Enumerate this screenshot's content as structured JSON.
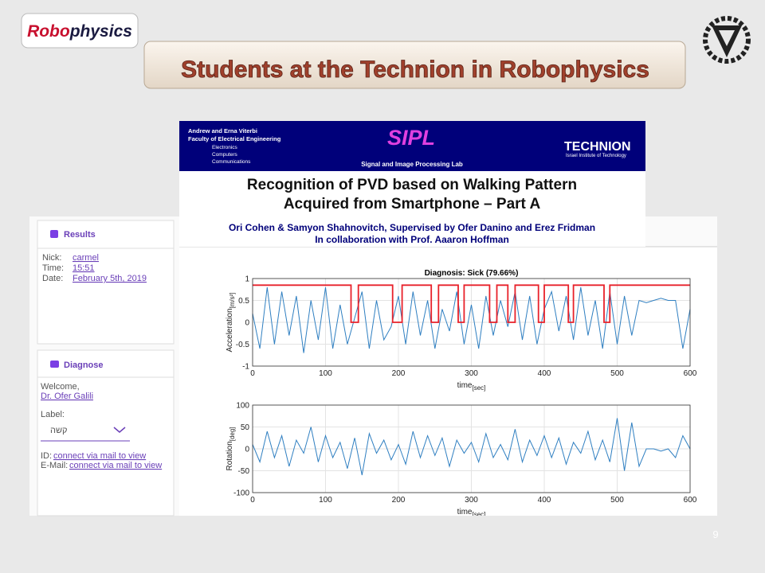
{
  "slide": {
    "logo_red": "Robo",
    "logo_dark": "physics",
    "title": "Students at the Technion in Robophysics",
    "page_number": "9"
  },
  "poster": {
    "faculty_1": "Andrew and Erna Viterbi",
    "faculty_2": "Faculty of Electrical Engineering",
    "dept_1": "Electronics",
    "dept_2": "Computers",
    "dept_3": "Communications",
    "lab_short": "SIPL",
    "lab_name": "Signal and Image Processing Lab",
    "uni": "TECHNION",
    "uni_sub": "Israel Institute of Technology",
    "title_1": "Recognition of PVD based on Walking Pattern",
    "title_2": "Acquired from Smartphone – Part A",
    "authors": "Ori Cohen & Samyon Shahnovitch, Supervised by Ofer Danino and Erez Fridman",
    "collab": "In collaboration with Prof. Aaaron Hoffman"
  },
  "sidebar": {
    "results": {
      "heading": "Results",
      "rows": [
        [
          "Nick:",
          "carmel"
        ],
        [
          "Time:",
          "15:51"
        ],
        [
          "Date:",
          "February 5th, 2019"
        ]
      ]
    },
    "diagnose": {
      "heading": "Diagnose",
      "welcome": "Welcome,",
      "doctor": "Dr. Ofer Galili",
      "label": "Label:",
      "label_value": "קשה",
      "id_label": "ID:",
      "id_value": "connect via mail to view",
      "email_label": "E-Mail:",
      "email_value": "connect via mail to view"
    }
  },
  "chart_data": [
    {
      "type": "line",
      "title": "Diagnosis: Sick (79.66%)",
      "ylabel": "Acceleration",
      "ylabel_unit": "[m/s²]",
      "xlabel": "time",
      "xlabel_unit": "[sec]",
      "xlim": [
        0,
        600
      ],
      "ylim": [
        -1,
        1
      ],
      "xticks": [
        0,
        100,
        200,
        300,
        400,
        500,
        600
      ],
      "yticks": [
        -1,
        -0.5,
        0,
        0.5,
        1
      ],
      "grid": true,
      "series": [
        {
          "color": "#2f7fc1",
          "x": [
            0,
            10,
            20,
            30,
            40,
            50,
            60,
            70,
            80,
            90,
            100,
            110,
            120,
            130,
            140,
            150,
            160,
            170,
            180,
            190,
            200,
            210,
            220,
            230,
            240,
            250,
            260,
            270,
            280,
            290,
            300,
            310,
            320,
            330,
            340,
            350,
            360,
            370,
            380,
            390,
            400,
            410,
            420,
            430,
            440,
            450,
            460,
            470,
            480,
            490,
            500,
            510,
            520,
            530,
            540,
            550,
            560,
            570,
            580,
            590,
            600
          ],
          "values": [
            0.2,
            -0.6,
            0.8,
            -0.5,
            0.7,
            -0.3,
            0.6,
            -0.7,
            0.5,
            -0.4,
            0.8,
            -0.6,
            0.4,
            -0.5,
            0.1,
            0.7,
            -0.6,
            0.5,
            -0.4,
            -0.1,
            0.6,
            -0.5,
            0.7,
            -0.3,
            0.5,
            -0.6,
            0.3,
            -0.2,
            0.7,
            -0.5,
            0.4,
            -0.6,
            0.6,
            -0.3,
            0.5,
            -0.1,
            0.7,
            -0.4,
            0.6,
            -0.5,
            0.3,
            0.7,
            -0.2,
            0.6,
            -0.4,
            0.8,
            -0.3,
            0.5,
            -0.6,
            0.7,
            -0.5,
            0.6,
            -0.3,
            0.5,
            0.45,
            0.5,
            0.55,
            0.5,
            0.5,
            -0.6,
            0.3
          ]
        },
        {
          "color": "#e8212a",
          "x": [
            0,
            135,
            135,
            145,
            145,
            192,
            192,
            205,
            205,
            245,
            245,
            255,
            255,
            282,
            282,
            290,
            290,
            325,
            325,
            335,
            335,
            350,
            350,
            360,
            360,
            392,
            392,
            400,
            400,
            433,
            433,
            440,
            440,
            482,
            482,
            490,
            490,
            600
          ],
          "values": [
            0.85,
            0.85,
            0,
            0,
            0.85,
            0.85,
            0,
            0,
            0.85,
            0.85,
            0,
            0,
            0.85,
            0.85,
            0,
            0,
            0.85,
            0.85,
            0,
            0,
            0.85,
            0.85,
            0,
            0,
            0.85,
            0.85,
            0,
            0,
            0.85,
            0.85,
            0,
            0,
            0.85,
            0.85,
            0,
            0,
            0.85,
            0.85
          ]
        }
      ]
    },
    {
      "type": "line",
      "ylabel": "Rotation",
      "ylabel_unit": "[deg]",
      "xlabel": "time",
      "xlabel_unit": "[sec]",
      "xlim": [
        0,
        600
      ],
      "ylim": [
        -100,
        100
      ],
      "xticks": [
        0,
        100,
        200,
        300,
        400,
        500,
        600
      ],
      "yticks": [
        -100,
        -50,
        0,
        50,
        100
      ],
      "grid": true,
      "series": [
        {
          "color": "#2f7fc1",
          "x": [
            0,
            10,
            20,
            30,
            40,
            50,
            60,
            70,
            80,
            90,
            100,
            110,
            120,
            130,
            140,
            150,
            160,
            170,
            180,
            190,
            200,
            210,
            220,
            230,
            240,
            250,
            260,
            270,
            280,
            290,
            300,
            310,
            320,
            330,
            340,
            350,
            360,
            370,
            380,
            390,
            400,
            410,
            420,
            430,
            440,
            450,
            460,
            470,
            480,
            490,
            500,
            510,
            520,
            530,
            540,
            550,
            560,
            570,
            580,
            590,
            600
          ],
          "values": [
            10,
            -30,
            40,
            -20,
            30,
            -40,
            20,
            -10,
            50,
            -30,
            30,
            -20,
            15,
            -45,
            25,
            -60,
            35,
            -10,
            20,
            -25,
            10,
            -35,
            40,
            -20,
            30,
            -15,
            25,
            -40,
            20,
            -10,
            15,
            -30,
            35,
            -20,
            10,
            -25,
            45,
            -30,
            20,
            -15,
            30,
            -20,
            25,
            -35,
            15,
            -10,
            40,
            -25,
            20,
            -30,
            70,
            -50,
            60,
            -40,
            0,
            0,
            -5,
            0,
            -20,
            30,
            0
          ]
        }
      ]
    }
  ]
}
